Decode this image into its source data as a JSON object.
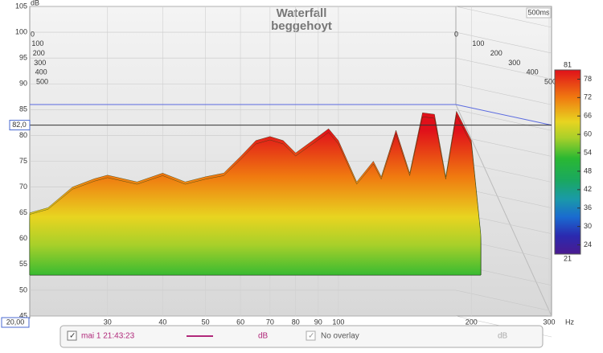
{
  "chart_data": {
    "type": "waterfall",
    "title": "Waterfall",
    "subtitle": "beggehoyt",
    "y_unit": "dB",
    "x_unit": "Hz",
    "time_window": "500ms",
    "xlim": [
      20,
      300
    ],
    "xscale": "log",
    "xticks": [
      {
        "value": 20,
        "label": "20,00"
      },
      30,
      40,
      50,
      60,
      70,
      80,
      90,
      100,
      200,
      300
    ],
    "ylim": [
      45,
      105
    ],
    "yticks": [
      45,
      50,
      55,
      60,
      65,
      70,
      75,
      80,
      85,
      90,
      95,
      100,
      105
    ],
    "time_ticks": [
      0,
      100,
      200,
      300,
      400,
      500
    ],
    "cursor": {
      "value": 82,
      "label": "82,0"
    },
    "colorbar": {
      "lim": [
        21,
        81
      ],
      "ticks": [
        21,
        24,
        30,
        36,
        42,
        48,
        54,
        60,
        66,
        72,
        78,
        81
      ]
    },
    "x": [
      20,
      22,
      25,
      28,
      30,
      35,
      40,
      45,
      50,
      55,
      60,
      65,
      70,
      75,
      80,
      90,
      95,
      100,
      110,
      120,
      125,
      135,
      145,
      155,
      165,
      175,
      185,
      200,
      210
    ],
    "values": [
      65,
      66,
      70,
      71.6,
      72.3,
      71,
      72.7,
      71,
      72,
      72.7,
      75.9,
      79,
      79.8,
      79,
      76.6,
      79.8,
      81.3,
      79,
      71,
      75,
      72,
      81,
      72.7,
      84.4,
      84.1,
      72,
      84.7,
      79,
      61
    ]
  },
  "footer": {
    "date": "mai 1 21:43:23",
    "unit": "dB",
    "overlay": "No overlay",
    "overlay_unit": "dB"
  }
}
